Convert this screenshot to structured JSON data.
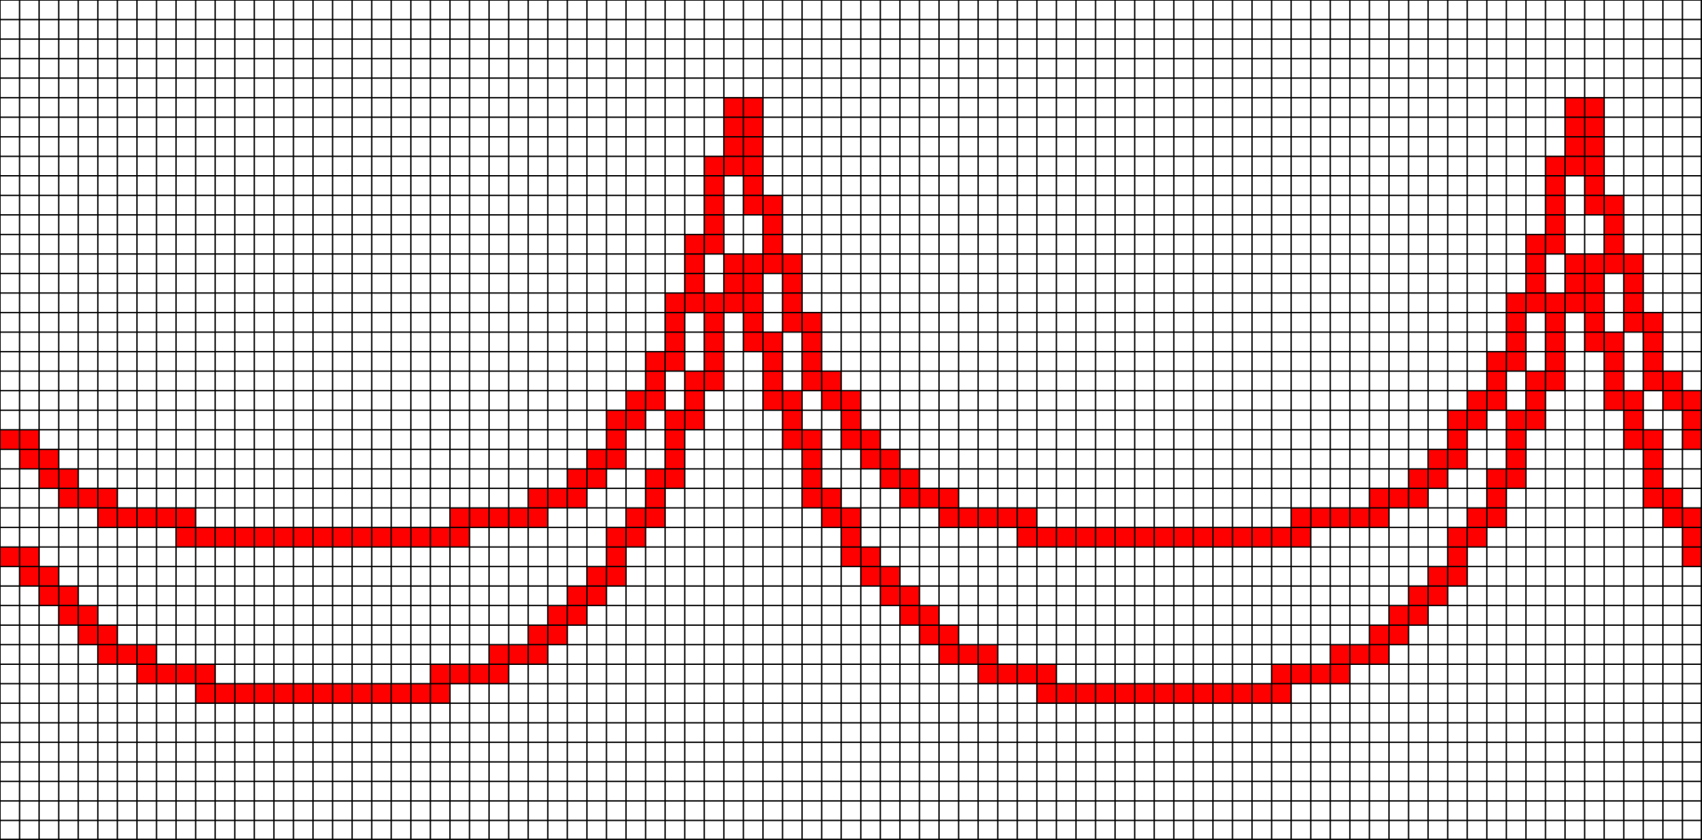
{
  "pattern": {
    "colors": {
      "background": "#ffffff",
      "grid_line": "#000000",
      "filled_cell": "#ff0000"
    },
    "grid": {
      "columns": 87,
      "rows": 43
    },
    "curves": [
      {
        "name": "upper-curve",
        "peak_row": 5,
        "trough_row": 27,
        "peak_columns": [
          37.5,
          80.5
        ],
        "trough_center_columns": [
          16.5,
          59.5
        ],
        "trough_flat_half_width": 3,
        "steepness": 4.3
      },
      {
        "name": "lower-curve",
        "peak_row": 13,
        "trough_row": 35,
        "peak_columns": [
          37.5,
          80.5
        ],
        "trough_center_columns": [
          16.5,
          59.5
        ],
        "trough_flat_half_width": 3,
        "steepness": 3.3
      }
    ]
  }
}
